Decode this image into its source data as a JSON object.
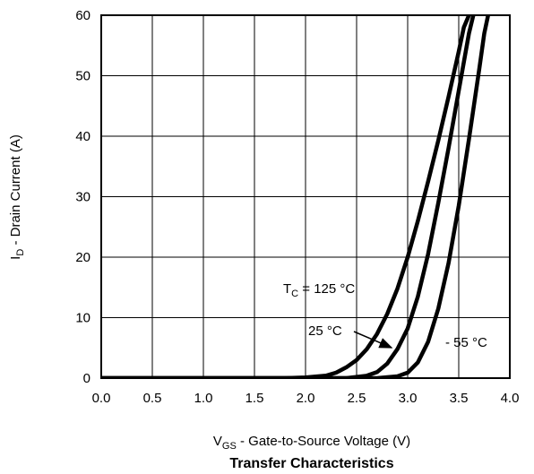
{
  "chart_data": {
    "type": "line",
    "title": "Transfer Characteristics",
    "xlabel": {
      "main": "V",
      "sub": "GS",
      "rest": " - Gate-to-Source Voltage (V)"
    },
    "ylabel": {
      "main": "I",
      "sub": "D",
      "rest": " - Drain Current (A)"
    },
    "xlim": [
      0,
      4
    ],
    "ylim": [
      0,
      60
    ],
    "xticks": [
      0,
      0.5,
      1,
      1.5,
      2,
      2.5,
      3,
      3.5,
      4
    ],
    "xtick_labels": [
      "0.0",
      "0.5",
      "1.0",
      "1.5",
      "2.0",
      "2.5",
      "3.0",
      "3.5",
      "4.0"
    ],
    "yticks": [
      0,
      10,
      20,
      30,
      40,
      50,
      60
    ],
    "ytick_labels": [
      "0",
      "10",
      "20",
      "30",
      "40",
      "50",
      "60"
    ],
    "grid": true,
    "series": [
      {
        "name": "T_C = 125 °C",
        "x": [
          0,
          1.8,
          2.0,
          2.2,
          2.3,
          2.4,
          2.5,
          2.6,
          2.7,
          2.8,
          2.9,
          3.0,
          3.1,
          3.2,
          3.3,
          3.4,
          3.5,
          3.55,
          3.6
        ],
        "y": [
          0,
          0,
          0.1,
          0.4,
          0.9,
          1.8,
          3.0,
          4.8,
          7.3,
          10.6,
          14.8,
          20,
          26,
          32.5,
          39.3,
          46.5,
          54,
          58,
          60
        ]
      },
      {
        "name": "25 °C",
        "x": [
          0,
          2.4,
          2.6,
          2.7,
          2.8,
          2.9,
          3.0,
          3.1,
          3.2,
          3.3,
          3.4,
          3.5,
          3.6,
          3.65,
          3.7
        ],
        "y": [
          0,
          0,
          0.4,
          1.0,
          2.4,
          4.8,
          8.2,
          13.5,
          20.5,
          29,
          38,
          47.5,
          57,
          60.5,
          63
        ]
      },
      {
        "name": "- 55 °C",
        "x": [
          0,
          2.7,
          2.9,
          3.0,
          3.1,
          3.2,
          3.3,
          3.4,
          3.5,
          3.6,
          3.7,
          3.75,
          3.8
        ],
        "y": [
          0,
          0,
          0.3,
          0.9,
          2.6,
          6.0,
          11.5,
          19,
          28.5,
          39.5,
          51,
          57,
          61
        ]
      }
    ],
    "annotations": [
      {
        "text": {
          "main": "T",
          "sub": "C",
          "rest": " = 125 °C"
        },
        "series": 0
      },
      {
        "text": "25 °C",
        "series": 1,
        "arrow": true
      },
      {
        "text": "- 55 °C",
        "series": 2
      }
    ]
  }
}
